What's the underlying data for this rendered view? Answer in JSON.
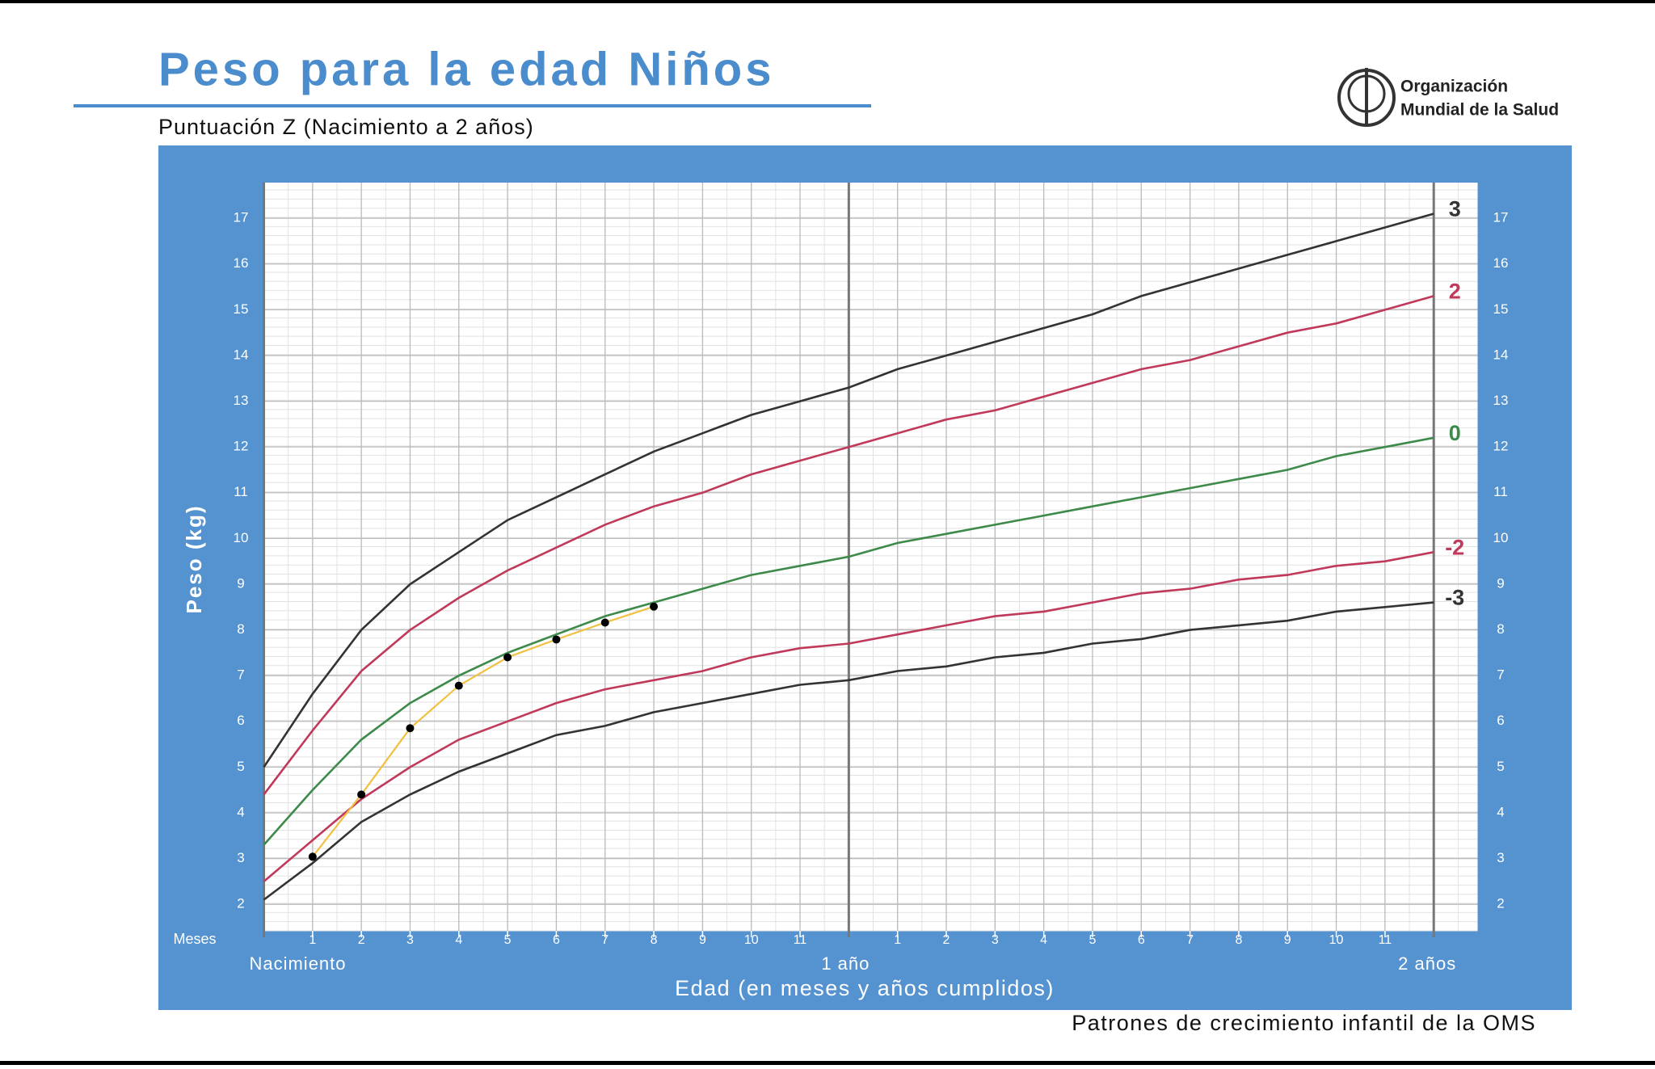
{
  "chart_data": {
    "type": "line",
    "title": "Peso para la edad Niños",
    "subtitle": "Puntuación Z (Nacimiento a 2 años)",
    "y_label": "Peso (kg)",
    "x_label": "Edad (en meses y años cumplidos)",
    "x_unit_label": "Meses",
    "source": "Patrones de crecimiento infantil de la OMS",
    "logo_text": [
      "Organización",
      "Mundial de la Salud"
    ],
    "x": [
      0,
      1,
      2,
      3,
      4,
      5,
      6,
      7,
      8,
      9,
      10,
      11,
      12,
      13,
      14,
      15,
      16,
      17,
      18,
      19,
      20,
      21,
      22,
      23,
      24
    ],
    "xlim": [
      0,
      24.9
    ],
    "ylim": [
      1.42,
      17.78
    ],
    "xticks": [
      1,
      2,
      3,
      4,
      5,
      6,
      7,
      8,
      9,
      10,
      11,
      {
        "value": 13,
        "label": "1"
      },
      {
        "value": 14,
        "label": "2"
      },
      {
        "value": 15,
        "label": "3"
      },
      {
        "value": 16,
        "label": "4"
      },
      {
        "value": 17,
        "label": "5"
      },
      {
        "value": 18,
        "label": "6"
      },
      {
        "value": 19,
        "label": "7"
      },
      {
        "value": 20,
        "label": "8"
      },
      {
        "value": 21,
        "label": "9"
      },
      {
        "value": 22,
        "label": "10"
      },
      {
        "value": 23,
        "label": "11"
      }
    ],
    "xticks_major": [
      {
        "value": 0,
        "label": "Nacimiento"
      },
      {
        "value": 12,
        "label": "1 año"
      },
      {
        "value": 24,
        "label": "2 años"
      }
    ],
    "yticks": [
      2,
      3,
      4,
      5,
      6,
      7,
      8,
      9,
      10,
      11,
      12,
      13,
      14,
      15,
      16,
      17
    ],
    "grid": true,
    "series": [
      {
        "name": "3",
        "color": "#333333",
        "values": [
          5.0,
          6.6,
          8.0,
          9.0,
          9.7,
          10.4,
          10.9,
          11.4,
          11.9,
          12.3,
          12.7,
          13.0,
          13.3,
          13.7,
          14.0,
          14.3,
          14.6,
          14.9,
          15.3,
          15.6,
          15.9,
          16.2,
          16.5,
          16.8,
          17.1
        ]
      },
      {
        "name": "2",
        "color": "#c0395a",
        "values": [
          4.4,
          5.8,
          7.1,
          8.0,
          8.7,
          9.3,
          9.8,
          10.3,
          10.7,
          11.0,
          11.4,
          11.7,
          12.0,
          12.3,
          12.6,
          12.8,
          13.1,
          13.4,
          13.7,
          13.9,
          14.2,
          14.5,
          14.7,
          15.0,
          15.3
        ]
      },
      {
        "name": "0",
        "color": "#3d8a4a",
        "values": [
          3.3,
          4.5,
          5.6,
          6.4,
          7.0,
          7.5,
          7.9,
          8.3,
          8.6,
          8.9,
          9.2,
          9.4,
          9.6,
          9.9,
          10.1,
          10.3,
          10.5,
          10.7,
          10.9,
          11.1,
          11.3,
          11.5,
          11.8,
          12.0,
          12.2
        ]
      },
      {
        "name": "-2",
        "color": "#c0395a",
        "values": [
          2.5,
          3.4,
          4.3,
          5.0,
          5.6,
          6.0,
          6.4,
          6.7,
          6.9,
          7.1,
          7.4,
          7.6,
          7.7,
          7.9,
          8.1,
          8.3,
          8.4,
          8.6,
          8.8,
          8.9,
          9.1,
          9.2,
          9.4,
          9.5,
          9.7
        ]
      },
      {
        "name": "-3",
        "color": "#333333",
        "values": [
          2.1,
          2.9,
          3.8,
          4.4,
          4.9,
          5.3,
          5.7,
          5.9,
          6.2,
          6.4,
          6.6,
          6.8,
          6.9,
          7.1,
          7.2,
          7.4,
          7.5,
          7.7,
          7.8,
          8.0,
          8.1,
          8.2,
          8.4,
          8.5,
          8.6
        ]
      },
      {
        "color": "#f0c040",
        "marker_color": "#000000",
        "x": [
          1,
          2,
          3,
          4,
          5,
          6,
          7,
          8
        ],
        "values": [
          3.04,
          4.4,
          5.85,
          6.78,
          7.4,
          7.79,
          8.16,
          8.51
        ]
      }
    ]
  }
}
